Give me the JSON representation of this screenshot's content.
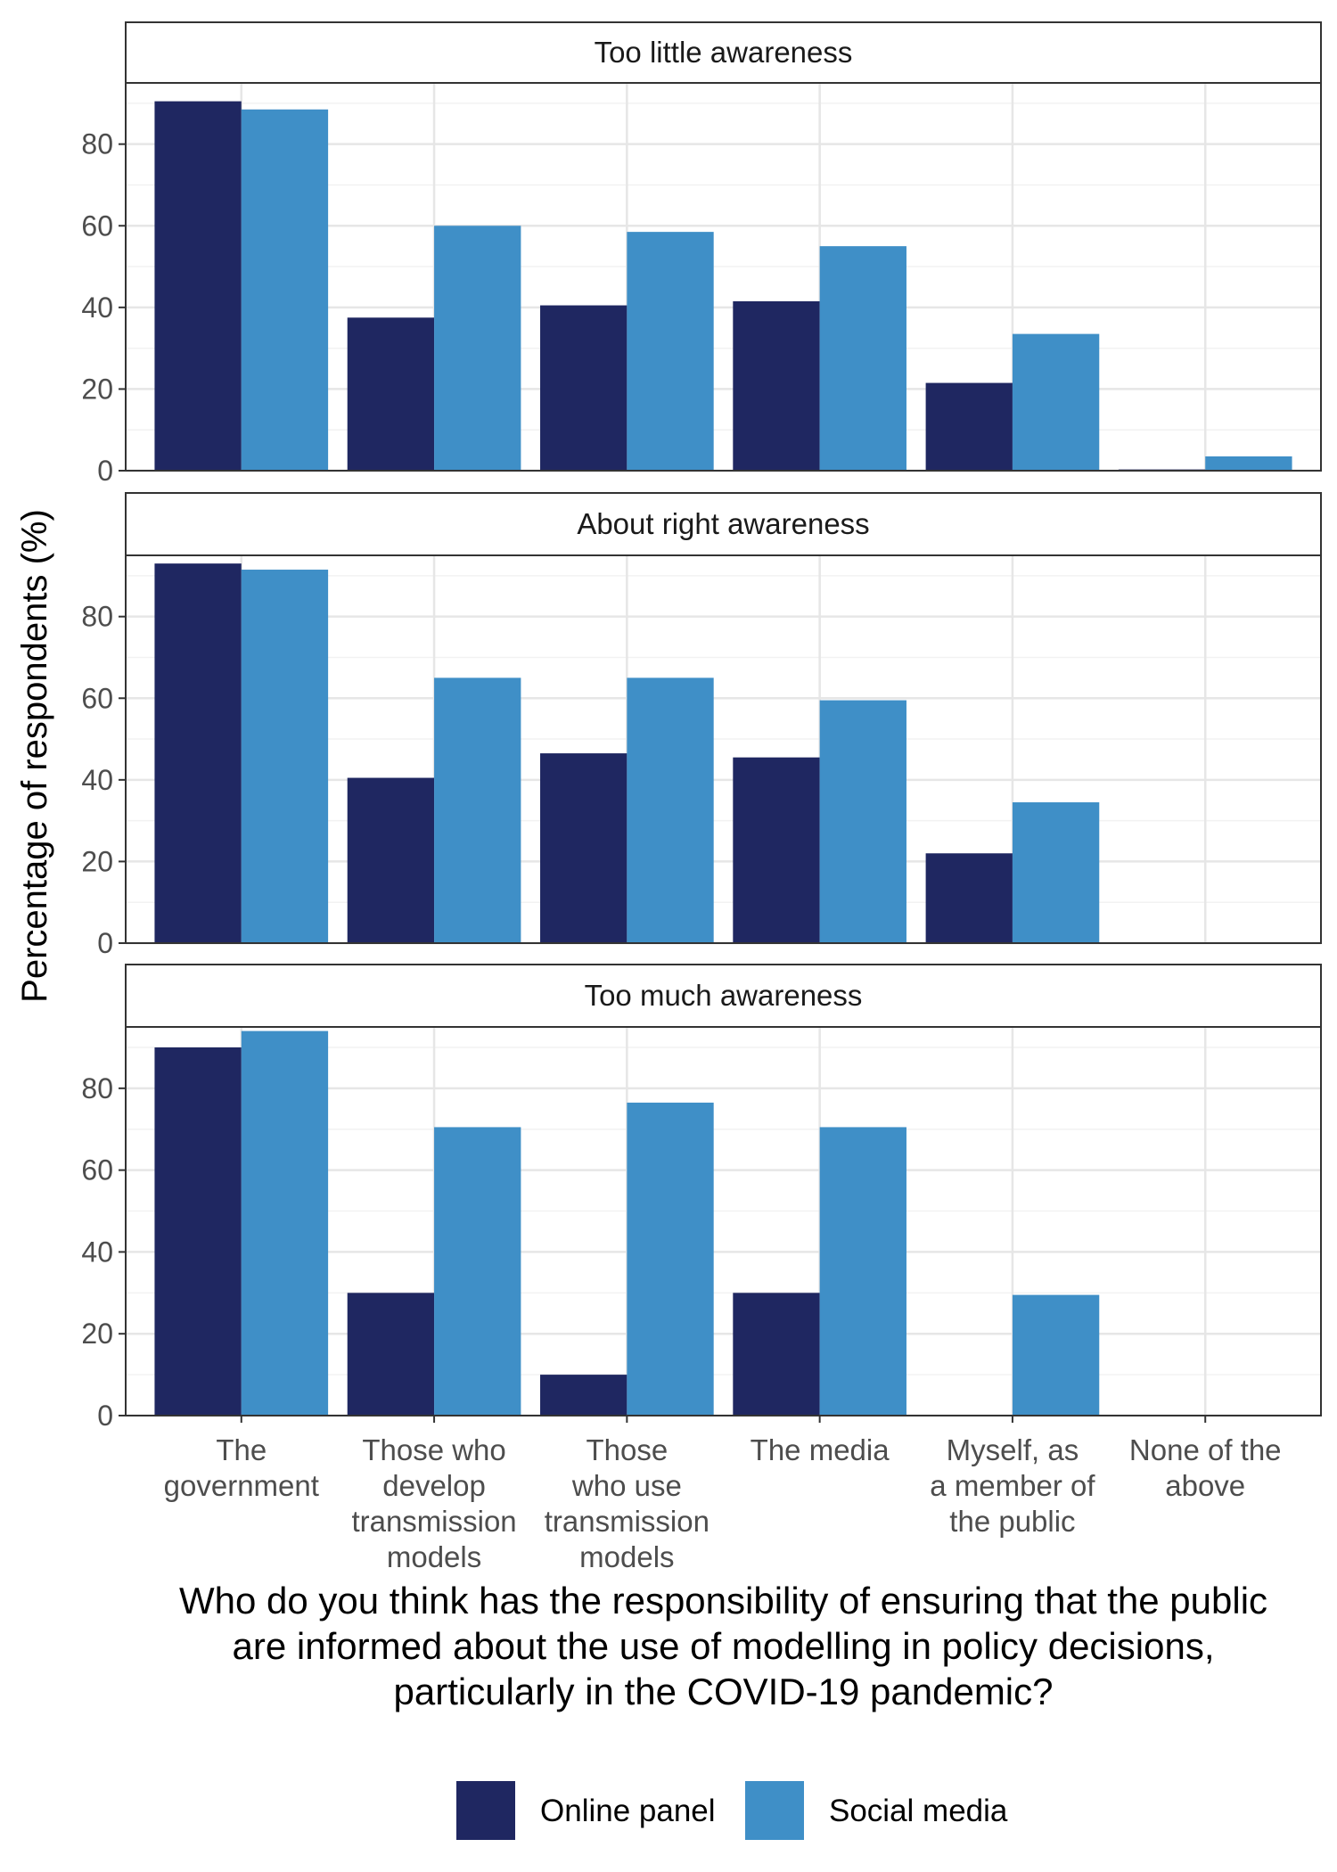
{
  "chart_data": {
    "type": "bar",
    "xlabel_lines": [
      "Who do you think has the responsibility of ensuring that the public",
      "are informed about the use of modelling in policy decisions,",
      "particularly in the COVID-19 pandemic?"
    ],
    "ylabel": "Percentage of respondents (%)",
    "ylim": [
      0,
      95
    ],
    "yticks": [
      0,
      20,
      40,
      60,
      80
    ],
    "grid": true,
    "legend_position": "bottom",
    "categories": [
      [
        "The",
        "government"
      ],
      [
        "Those who",
        "develop",
        "transmission",
        "models"
      ],
      [
        "Those",
        "who use",
        "transmission",
        "models"
      ],
      [
        "The media"
      ],
      [
        "Myself, as",
        "a member of",
        "the public"
      ],
      [
        "None of the",
        "above"
      ]
    ],
    "series": [
      {
        "name": "Online panel",
        "color": "#1f2761"
      },
      {
        "name": "Social media",
        "color": "#3f8fc7"
      }
    ],
    "facets": [
      {
        "title": "Too little awareness",
        "values": [
          [
            90.5,
            37.5,
            40.5,
            41.5,
            21.5,
            0.3
          ],
          [
            88.5,
            60,
            58.5,
            55,
            33.5,
            3.5
          ]
        ]
      },
      {
        "title": "About right awareness",
        "values": [
          [
            93,
            40.5,
            46.5,
            45.5,
            22,
            0
          ],
          [
            91.5,
            65,
            65,
            59.5,
            34.5,
            0
          ]
        ]
      },
      {
        "title": "Too much awareness",
        "values": [
          [
            90,
            30,
            10,
            30,
            0,
            0
          ],
          [
            94,
            70.5,
            76.5,
            70.5,
            29.5,
            0
          ]
        ]
      }
    ]
  }
}
